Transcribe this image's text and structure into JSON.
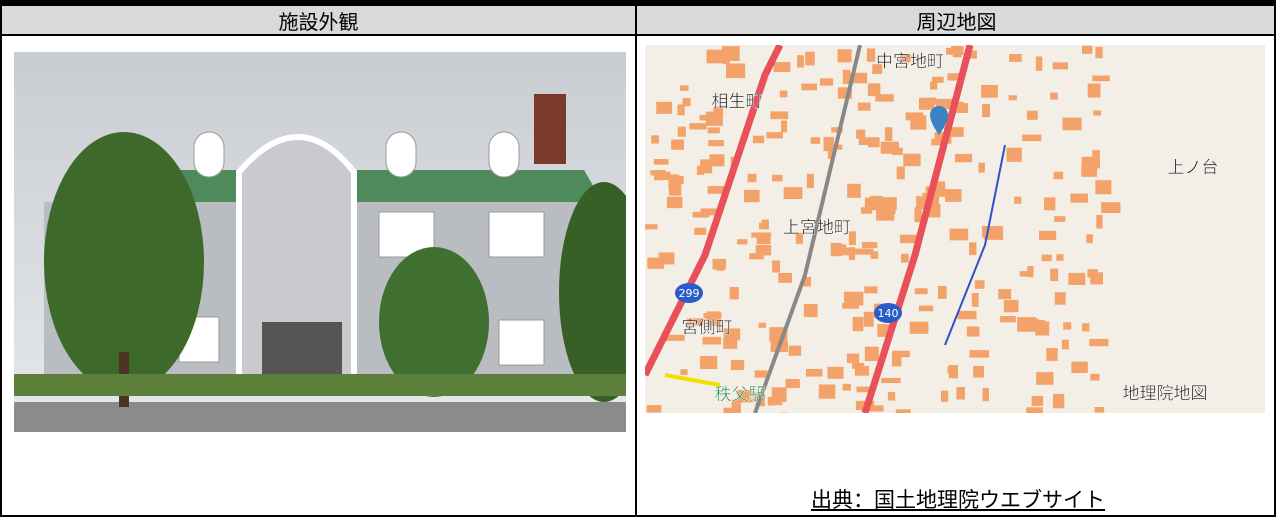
{
  "table": {
    "headers": [
      "施設外観",
      "周辺地図"
    ]
  },
  "map_labels": [
    "相生町",
    "中宮地町",
    "上宮地町",
    "宮側町",
    "秩父駅",
    "上ノ台",
    "299",
    "140",
    "地理院地図"
  ],
  "source": "出典：国土地理院ウエブサイト"
}
